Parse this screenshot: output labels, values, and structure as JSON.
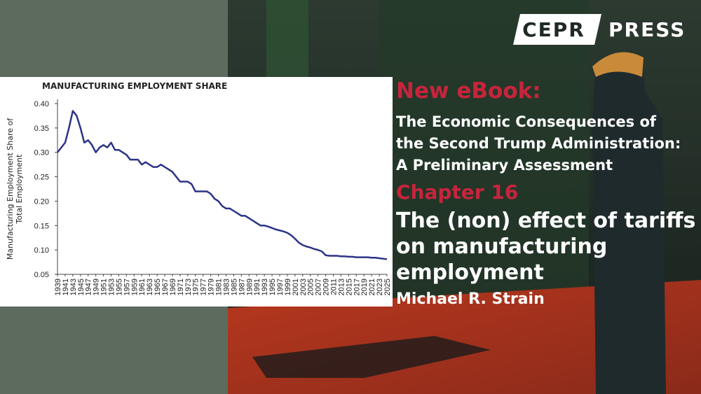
{
  "logo": {
    "left": "CEPR",
    "right": "PRESS"
  },
  "banner": {
    "kicker": "New eBook:",
    "book_title": [
      "The Economic Consequences of",
      "the Second Trump Administration:",
      "A Preliminary Assessment"
    ],
    "chapter": "Chapter 16",
    "chapter_title": [
      "The (non) effect of tariffs",
      "on manufacturing",
      "employment"
    ],
    "author": "Michael R. Strain"
  },
  "chart_data": {
    "type": "line",
    "title": "MANUFACTURING EMPLOYMENT SHARE",
    "ylabel": [
      "Manufacturing Employment Share of",
      "Total Employment"
    ],
    "x": [
      1939,
      1940,
      1941,
      1942,
      1943,
      1944,
      1945,
      1946,
      1947,
      1948,
      1949,
      1950,
      1951,
      1952,
      1953,
      1954,
      1955,
      1956,
      1957,
      1958,
      1959,
      1960,
      1961,
      1962,
      1963,
      1964,
      1965,
      1966,
      1967,
      1968,
      1969,
      1970,
      1971,
      1972,
      1973,
      1974,
      1975,
      1976,
      1977,
      1978,
      1979,
      1980,
      1981,
      1982,
      1983,
      1984,
      1985,
      1986,
      1987,
      1988,
      1989,
      1990,
      1991,
      1992,
      1993,
      1994,
      1995,
      1996,
      1997,
      1998,
      1999,
      2000,
      2001,
      2002,
      2003,
      2004,
      2005,
      2006,
      2007,
      2008,
      2009,
      2010,
      2011,
      2012,
      2013,
      2014,
      2015,
      2016,
      2017,
      2018,
      2019,
      2020,
      2021,
      2022,
      2023,
      2024,
      2025
    ],
    "values": [
      0.3,
      0.31,
      0.32,
      0.35,
      0.385,
      0.375,
      0.35,
      0.32,
      0.325,
      0.315,
      0.3,
      0.31,
      0.315,
      0.31,
      0.32,
      0.305,
      0.305,
      0.3,
      0.295,
      0.285,
      0.285,
      0.285,
      0.275,
      0.28,
      0.275,
      0.27,
      0.27,
      0.275,
      0.27,
      0.265,
      0.26,
      0.25,
      0.24,
      0.24,
      0.24,
      0.235,
      0.22,
      0.22,
      0.22,
      0.22,
      0.215,
      0.205,
      0.2,
      0.19,
      0.185,
      0.185,
      0.18,
      0.175,
      0.17,
      0.17,
      0.165,
      0.16,
      0.155,
      0.15,
      0.15,
      0.148,
      0.145,
      0.142,
      0.14,
      0.138,
      0.135,
      0.13,
      0.123,
      0.115,
      0.11,
      0.107,
      0.105,
      0.102,
      0.1,
      0.097,
      0.089,
      0.088,
      0.088,
      0.088,
      0.087,
      0.087,
      0.086,
      0.086,
      0.085,
      0.085,
      0.085,
      0.085,
      0.084,
      0.084,
      0.083,
      0.082,
      0.081
    ],
    "color": "#2b3486",
    "xlim": [
      1939,
      2025
    ],
    "xticks": [
      1939,
      1941,
      1943,
      1945,
      1947,
      1949,
      1951,
      1953,
      1955,
      1957,
      1959,
      1961,
      1963,
      1965,
      1967,
      1969,
      1971,
      1973,
      1975,
      1977,
      1979,
      1981,
      1983,
      1985,
      1987,
      1989,
      1991,
      1993,
      1995,
      1997,
      1999,
      2001,
      2003,
      2005,
      2007,
      2009,
      2011,
      2013,
      2015,
      2017,
      2019,
      2021,
      2023,
      2025
    ],
    "ylim": [
      0.05,
      0.4
    ],
    "yticks": [
      {
        "value": 0.4,
        "label": "0.40"
      },
      0.35,
      {
        "value": 0.3,
        "label": "0.30"
      },
      0.25,
      {
        "value": 0.2,
        "label": "0.20"
      },
      0.15,
      {
        "value": 0.1,
        "label": "0.10"
      },
      0.05
    ]
  }
}
